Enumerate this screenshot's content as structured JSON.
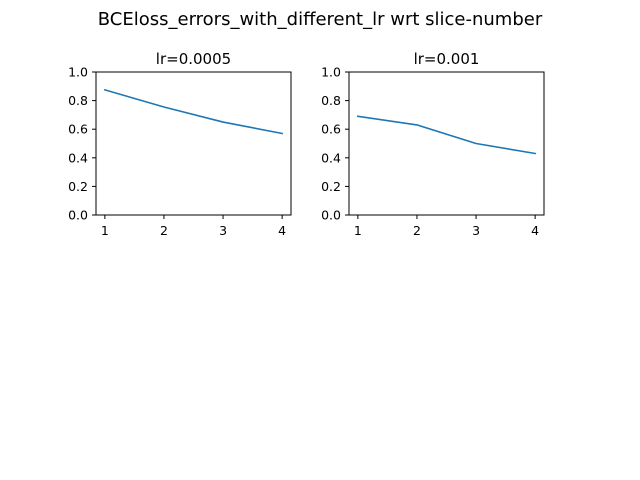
{
  "figure": {
    "suptitle": "BCEloss_errors_with_different_lr wrt slice-number"
  },
  "chart_data": [
    {
      "type": "line",
      "title": "lr=0.0005",
      "xlabel": "",
      "ylabel": "",
      "x": [
        1,
        2,
        3,
        4
      ],
      "x_ticks": [
        "1",
        "2",
        "3",
        "4"
      ],
      "y_ticks": [
        "0.0",
        "0.2",
        "0.4",
        "0.6",
        "0.8",
        "1.0"
      ],
      "xlim": [
        0.85,
        4.15
      ],
      "ylim": [
        0.0,
        1.0
      ],
      "grid": false,
      "series": [
        {
          "values": [
            0.875,
            0.755,
            0.65,
            0.57
          ],
          "color": "#1f77b4"
        }
      ]
    },
    {
      "type": "line",
      "title": "lr=0.001",
      "xlabel": "",
      "ylabel": "",
      "x": [
        1,
        2,
        3,
        4
      ],
      "x_ticks": [
        "1",
        "2",
        "3",
        "4"
      ],
      "y_ticks": [
        "0.0",
        "0.2",
        "0.4",
        "0.6",
        "0.8",
        "1.0"
      ],
      "xlim": [
        0.85,
        4.15
      ],
      "ylim": [
        0.0,
        1.0
      ],
      "grid": false,
      "series": [
        {
          "values": [
            0.69,
            0.63,
            0.5,
            0.43
          ],
          "color": "#1f77b4"
        }
      ]
    }
  ]
}
